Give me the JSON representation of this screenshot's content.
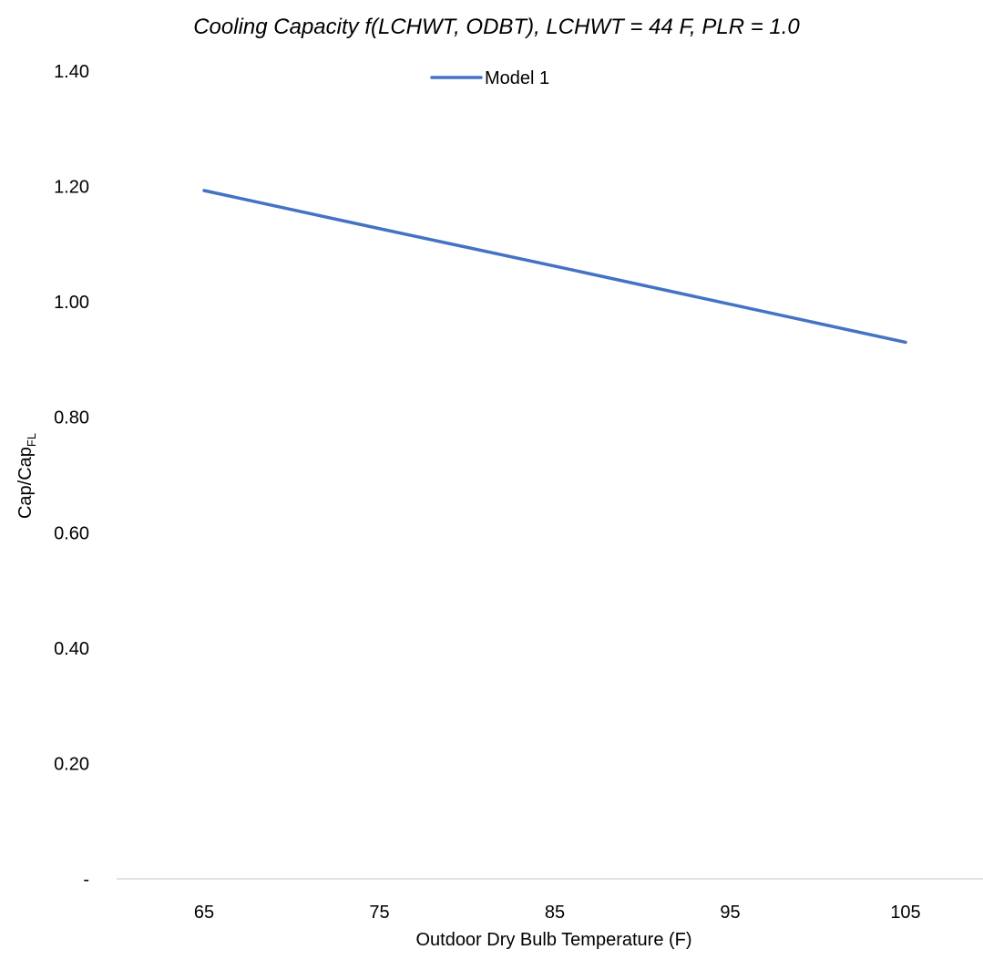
{
  "chart_data": {
    "type": "line",
    "title": "Cooling Capacity f(LCHWT, ODBT), LCHWT = 44 F, PLR = 1.0",
    "xlabel": "Outdoor Dry Bulb Temperature (F)",
    "ylabel": {
      "main": "Cap/Cap",
      "subscript": "FL"
    },
    "x": [
      65,
      75,
      85,
      95,
      105
    ],
    "x_tick_labels": [
      "65",
      "75",
      "85",
      "95",
      "105"
    ],
    "y_tick_labels": [
      "-",
      "0.20",
      "0.40",
      "0.60",
      "0.80",
      "1.00",
      "1.20",
      "1.40"
    ],
    "y_ticks": [
      0,
      0.2,
      0.4,
      0.6,
      0.8,
      1.0,
      1.2,
      1.4
    ],
    "ylim": [
      0,
      1.4
    ],
    "grid": false,
    "legend_position": "top-center",
    "series": [
      {
        "name": "Model 1",
        "color": "#4472C4",
        "values": [
          1.193,
          1.127,
          1.062,
          0.996,
          0.93
        ]
      }
    ]
  }
}
